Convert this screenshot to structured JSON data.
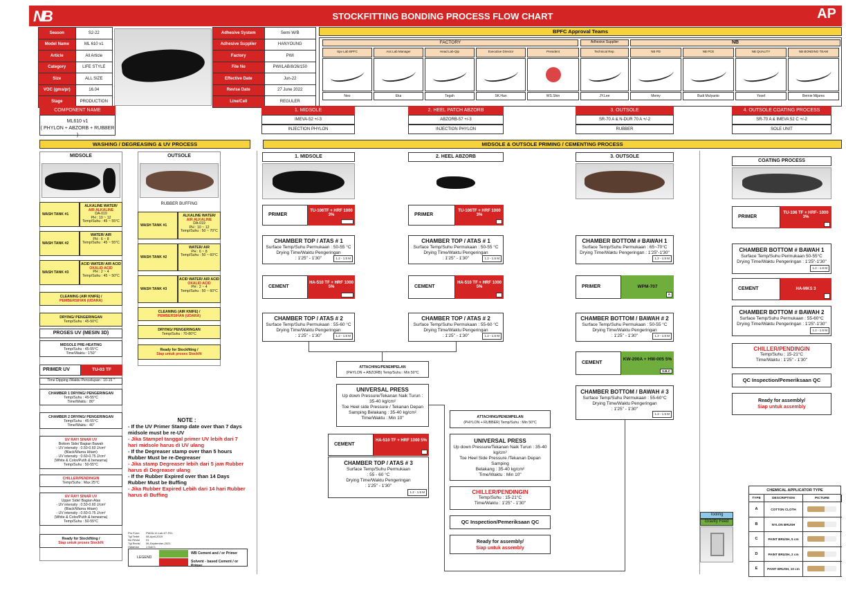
{
  "header": {
    "title": "STOCKFITTING BONDING PROCESS FLOW CHART",
    "logo": "NB",
    "right_logo": "AP"
  },
  "general": {
    "rows": [
      [
        "Season",
        "S2-22"
      ],
      [
        "Model Name",
        "ML 610 v1"
      ],
      [
        "Article",
        "All Article"
      ],
      [
        "Category",
        "LIFE STYLE"
      ],
      [
        "Size",
        "ALL SIZE"
      ],
      [
        "VOC (gms/pr)",
        "16.04"
      ],
      [
        "Stage",
        "PRODUCTION"
      ]
    ],
    "rows2": [
      [
        "Adhesive System",
        "Semi W/B"
      ],
      [
        "Adhesive Supplier",
        "HANYOUNG"
      ],
      [
        "Factory",
        "PWI"
      ],
      [
        "File No",
        "PWI/LAB/8/26/150"
      ],
      [
        "Effective Date",
        "Jun-22"
      ],
      [
        "Revise Date",
        "27 June 2022"
      ],
      [
        "Line/Cell",
        "REGULER"
      ]
    ]
  },
  "approval": {
    "title": "BPFC Approval Teams",
    "factory": "FACTORY",
    "supplier": "Adhesive Supplier",
    "nb": "NB",
    "roles": [
      "Spv Lab BPFC",
      "Ass Lab Manager",
      "Head Lab-Qip",
      "Executive Director",
      "President",
      "Technical Rep.",
      "NB PD",
      "NB PCE",
      "NB QUALITY",
      "NB BONDING TEAM"
    ],
    "names": [
      "Neo",
      "Eka",
      "Tegah",
      "SK.Han",
      "WS.Shin",
      "JY.Lee",
      "Memy",
      "Budi Mulyanto",
      "Yosef",
      "Bernie Mijares"
    ]
  },
  "components": {
    "left_title": "COMPONENT NAME",
    "left_name": "ML610 v1",
    "left_sub": "( PHYLON + ABZORB + RUBBER )",
    "items": [
      {
        "title": "1. MIDSOLE",
        "l1": "IMEVA-52 +/-3",
        "l2": "INJECTION PHYLON"
      },
      {
        "title": "2. HEEL PATCH ABZORB",
        "l1": "ABZORB-57 +/-3",
        "l2": "INJECTION PHYLON"
      },
      {
        "title": "3. OUTSOLE",
        "l1": "SR-70 A & N-DUR 70 A +/-2",
        "l2": "RUBBER"
      },
      {
        "title": "4. OUTSOLE COATING PROCESS",
        "l1": "SR-70 A & IMEVA 52 C +/-2",
        "l2": "SOLE UNIT"
      }
    ]
  },
  "sections": {
    "wash": "WASHING / DEGREASING & UV PROCESS",
    "prime": "MIDSOLE & OUTSOLE PRIMING / CEMENTING PROCESS"
  },
  "wash": {
    "midsole": "MIDSOLE",
    "outsole": "OUTSOLE",
    "buffing": "RUBBER BUFFING",
    "m_tanks": [
      {
        "name": "WASH TANK #1",
        "t1": "ALKALINE WATER/",
        "t2": "AIR ALKALINE",
        "t3": "DA-019",
        "t4": "PH : 10 ~ 12",
        "t5": "Temp/Suhu : 45 ~ 55°C"
      },
      {
        "name": "WASH TANK #2",
        "t1": "WATER/ AIR",
        "t2": "",
        "t3": "",
        "t4": "PH : 6 ~ 8",
        "t5": "Temp/Suhu : 45 ~ 55°C"
      },
      {
        "name": "WASH TANK #3",
        "t1": "ACID WATER/ AIR ACID",
        "t2": "OXALID ACID",
        "t3": "",
        "t4": "PH : 2 ~ 4",
        "t5": "Temp/Suhu : 45 ~ 50°C"
      }
    ],
    "o_tanks": [
      {
        "name": "WASH TANK #1",
        "t1": "ALKALINE WATER/",
        "t2": "AIR ALKALINE",
        "t3": "DA-019",
        "t4": "PH : 10 ~ 12",
        "t5": "Temp/Suhu : 50 ~ 70°C"
      },
      {
        "name": "WASH TANK #2",
        "t1": "WATER/ AIR",
        "t2": "",
        "t3": "",
        "t4": "PH : 6 ~ 8",
        "t5": "Temp/Suhu : 50 ~ 60°C"
      },
      {
        "name": "WASH TANK #3",
        "t1": "ACID WATER/ AIR ACID",
        "t2": "OXALID ACID",
        "t3": "",
        "t4": "PH : 2 ~ 4",
        "t5": "Temp/Suhu : 50 ~ 60°C"
      }
    ],
    "m_clean1": "CLEANING (AIR KNIFE) /",
    "m_clean2": "PEMBERSIHAN (UDARA)",
    "m_dry1": "DRYING/ PENGERINGAN",
    "m_dry2": "Temp/Suhu : 45-50°C",
    "uv": "PROSES UV (MESIN 3D)",
    "pre1": "MIDSOLE PRE-HEATING",
    "pre2": "Temp/Suhu : 45-55°C",
    "pre3": "Time/Waktu : 1'50\"",
    "primer_uv": "PRIMER UV",
    "primer_uv_val": "TU-03 TF",
    "dip": "Time Dipping /Waktu Pencelupan : 10-15 \"",
    "ch1a": "CHAMBER 1 DRYING/ PENGERINGAN",
    "ch1b": "Temp/Suhu : 45-55°C",
    "ch1c": "Time/Waktu : 80\"",
    "ch2a": "CHAMBER 2 DRYING/ PENGERINGAN",
    "ch2b": "Temp/Suhu : 45-55°C",
    "ch2c": "Time/Waktu : 40\"",
    "uvr1": [
      "UV RAY/ SINAR UV",
      "Bottom Side/ Bagian Bawah",
      "- UV intensity : 0.50-0.60 J/cm²",
      "(Black/Warna Hitam)",
      "- UV intensity : 0.60-0.75 J/cm²",
      "(White & Color/Putih & berwarna)",
      "Temp/Suhu : 50-55°C"
    ],
    "chill1": "CHILLER/PENDINGIN",
    "chill2": "Temp/Suhu : Max 25°C",
    "uvr2": [
      "UV RAY/ SINAR UV",
      "Upper Side/ Bagian Atas",
      "- UV intensity : 0.50-0.60 J/cm²",
      "(Black/Warna Hitam)",
      "- UV intensity : 0.60-0.75 J/cm²",
      "(White & Color/Putih & berwarna)",
      "Temp/Suhu : 50-55°C"
    ],
    "ready1": "Ready for Stockfiting /",
    "ready2": "Siap untuk proses Stockfit",
    "o_clean1": "CLEANING (AIR KNIFE) /",
    "o_clean2": "PEMBERSIHAN (UDARA)",
    "o_dry1": "DRYING/ PENGERINGAN",
    "o_dry2": "Temp/Suhu : 70-80°C",
    "o_ready1": "Ready for Stockfiting /",
    "o_ready2": "Siap untuk proses Stockfit"
  },
  "note": {
    "title": "NOTE :",
    "lines": [
      {
        "t": "- If the UV Primer Stamp date over than 7 days midsole must be re-UV",
        "r": false
      },
      {
        "t": "- Jika Stampel tanggal primer UV lebih dari 7 hari midsole harus di UV ulang",
        "r": true
      },
      {
        "t": "- If the Degreaser stamp over than 5 hours Rubber Must be re-Degreaser",
        "r": false
      },
      {
        "t": "- Jika stamp Degreaser lebih dari 5 jam Rubber harus di Degreaser ulang",
        "r": true
      },
      {
        "t": "- If the Rubber Expired over than 14 Days Rubber Must be Buffing",
        "r": false
      },
      {
        "t": "- Jika Rubber Expired Lebih dari 14 hari Rubber harus di Buffing",
        "r": true
      }
    ]
  },
  "legend": {
    "label": "LEGEND",
    "wb": "WB Cement and / or Primer",
    "sb": "Solvent - based Cement / or Primer",
    "doc": [
      "Prs Form",
      "Tgl Terbit",
      "No Revisi",
      "Tgl Revisi",
      "Halaman"
    ],
    "docv": [
      "PWI/A-VI-Lab-07-F01",
      "08-April-2019",
      "01",
      "06-September-2021",
      "1 Dari 1"
    ]
  },
  "midsole": {
    "title": "1. MIDSOLE",
    "primer": "PRIMER",
    "primer_v": "TU-106TF + HRF 1000 3%",
    "primer_tag": "S.B.C",
    "ch1": "CHAMBER TOP / ATAS # 1",
    "ch1a": "Surface Temp/Suhu Permukaan : 50-55 °C",
    "ch1b": "Drying Time/Waktu Pengeringan",
    "ch1c": ": 1'25\" - 1'30\"",
    "ch1t": "1.2 - 1.5 M",
    "cement": "CEMENT",
    "cement_v": "HA-510 TF + HRF 1000 5%",
    "cement_tag": "S.B.C",
    "ch2": "CHAMBER TOP / ATAS # 2",
    "ch2a": "Surface Temp/Suhu Permukaan : 55-60 °C",
    "ch2b": "Drying Time/Waktu Pengeringan",
    "ch2c": ": 1'25\" - 1'30\"",
    "ch2t": "1.2 - 1.5 M"
  },
  "heel": {
    "title": "2. HEEL ABZORB",
    "primer": "PRIMER",
    "primer_v": "TU-106TF + HRF 1000 3%",
    "primer_tag": "S",
    "ch1": "CHAMBER TOP / ATAS # 1",
    "ch1a": "Surface Temp/Suhu Permukaan : 50-55 °C",
    "ch1b": "Drying Time/Waktu Pengeringan",
    "ch1c": ": 1'25\" - 1'30\"",
    "ch1t": "1.2 - 1.5 M",
    "cement": "CEMENT",
    "cement_v": "HA-510 TF + HRF 1000 5%",
    "cement_tag": "S",
    "ch2": "CHAMBER TOP / ATAS # 2",
    "ch2a": "Surface Temp/Suhu Permukaan : 55-60 °C",
    "ch2b": "Drying Time/Waktu Pengeringan",
    "ch2c": ": 1'25\" - 1'30\"",
    "ch2t": "1.2 - 1.5 M"
  },
  "attach1": {
    "a": "ATTACHING/PENEMPELAN",
    "b": "(PHYLON + ABZORB) Temp/Suhu : Min 50°C"
  },
  "press1": {
    "t": "UNIVERSAL PRESS",
    "l": [
      "Up down Pressure/Tekanan Naik Turun :",
      "35-40 kg/cm²",
      "Toe Heel side Pressure / Tekanan Depan",
      "Samping Belakang : 35-40 kg/cm²",
      "Time/Waktu : Min 10\""
    ]
  },
  "cement3": {
    "c": "CEMENT",
    "v": "HA-510 TF + HRF 1000 5%",
    "tag": "S",
    "ch": "CHAMBER TOP / ATAS # 3",
    "a": "Surface Temp/Suhu Permukaan",
    "b": ": 55 - 60 °C",
    "d": "Drying Time/Waktu Pengeringan",
    "e": ": 1'25\" - 1'30\"",
    "t": "1.2 - 1.5 M"
  },
  "attach2": {
    "a": "ATTACHING/PENEMPELAN",
    "b": "(PHYLON + RUBBER) Temp/Suhu : Min 50°C"
  },
  "press2": {
    "t": "UNIVERSAL PRESS",
    "l": [
      "Up down Pressure/Tekanan Naik Turun : 35-40",
      "kg/cm²",
      "Toe Heel Side Pressure /Tekanan Depan Samping",
      "Belakang : 35-40 kg/cm²",
      "Time/Waktu : Min 10\""
    ]
  },
  "chiller2": {
    "t": "CHILLER/PENDINGIN",
    "a": "Temp/Suhu : 15-21°C",
    "b": "Time/Waktu : 1'25\" - 1'30\""
  },
  "qc": "QC Inspection/Pemeriksaan QC",
  "ready": {
    "a": "Ready for assembly/",
    "b": "Siap untuk assembly"
  },
  "outsole": {
    "title": "3. OUTSOLE",
    "cb1": "CHAMBER BOTTOM # BAWAH 1",
    "cb1a": "Surface Temp/Suhu Permukaan : 65~70°C",
    "cb1b": "Drying Time/Waktu Pengeringan : 1'25\"-1'30\"",
    "cb1t": "1.2 - 1.5 M",
    "primer": "PRIMER",
    "primer_v": "WPM-707",
    "primer_tag": "A",
    "cb2": "CHAMBER BOTTOM / BAWAH # 2",
    "cb2a": "Surface Temp/Suhu Permukaan : 50-55 °C",
    "cb2b": "Drying Time/Waktu Pengeringan",
    "cb2c": ": 1'25\" - 1'30\"",
    "cb2t": "1.2 - 1.5 M",
    "cement": "CEMENT",
    "cement_v": "KW-200A + HW-005 5%",
    "cement_tag": "S.B.C",
    "cb3": "CHAMBER BOTTOM / BAWAH # 3",
    "cb3a": "Surface Temp/Suhu Permukaan : 55-60°C",
    "cb3b": "Drying Time/Waktu Pengeringan",
    "cb3c": ": 1'25\" - 1'30\"",
    "cb3t": "1.2 - 1.5 M"
  },
  "coating": {
    "title": "COATING PROCESS",
    "primer": "PRIMER",
    "primer_v": "TU-106 TF + HRF- 1000 3%",
    "primer_tag": "S",
    "cb1": "CHAMBER BOTTOM # BAWAH 1",
    "cb1a": "Surface Temp/Suhu Permukaan 50-55°C",
    "cb1b": "Drying Time/Waktu Pengeringan : 1'25\"-1'30\"",
    "cb1t": "1.2 - 1.5 M",
    "cement": "CEMENT",
    "cement_v": "HA-MKS 3",
    "cement_tag": "S",
    "cb2": "CHAMBER BOTTOM # BAWAH 2",
    "cb2a": "Surface Temp/Suhu Permukaan : 55-60°C",
    "cb2b": "Drying Time/Waktu Pengeringan : 1'25\"-1'30\"",
    "cb2t": "1.2 - 1.5 M",
    "chill": "CHILLER/PENDINGIN",
    "chilla": "Temp/Suhu : 15-21°C",
    "chillb": "Time/Waktu : 1'25\" - 1'30\"",
    "qc": "QC Inspection/Pemeriksaan QC",
    "ready_a": "Ready for assembly/",
    "ready_b": "Siap untuk assembly"
  },
  "tooling": {
    "t": "Tooling",
    "g": "Gravity Feed"
  },
  "applicator": {
    "title": "CHEMICAL APPLICATOR TYPE",
    "h": [
      "TYPE",
      "DESCRIPTION",
      "PICTURE"
    ],
    "rows": [
      [
        "A",
        "COTTON CLOTH"
      ],
      [
        "B",
        "NYLON BRUSH"
      ],
      [
        "C",
        "PAINT BRUSH, 5 cm"
      ],
      [
        "D",
        "PAINT BRUSH, 2 cm"
      ],
      [
        "E",
        "PAINT BRUSH, 10 cm"
      ]
    ]
  },
  "colors": {
    "red": "#d52424",
    "yellow": "#f6d33c",
    "green": "#6fae3c",
    "pale": "#fbf38a"
  }
}
